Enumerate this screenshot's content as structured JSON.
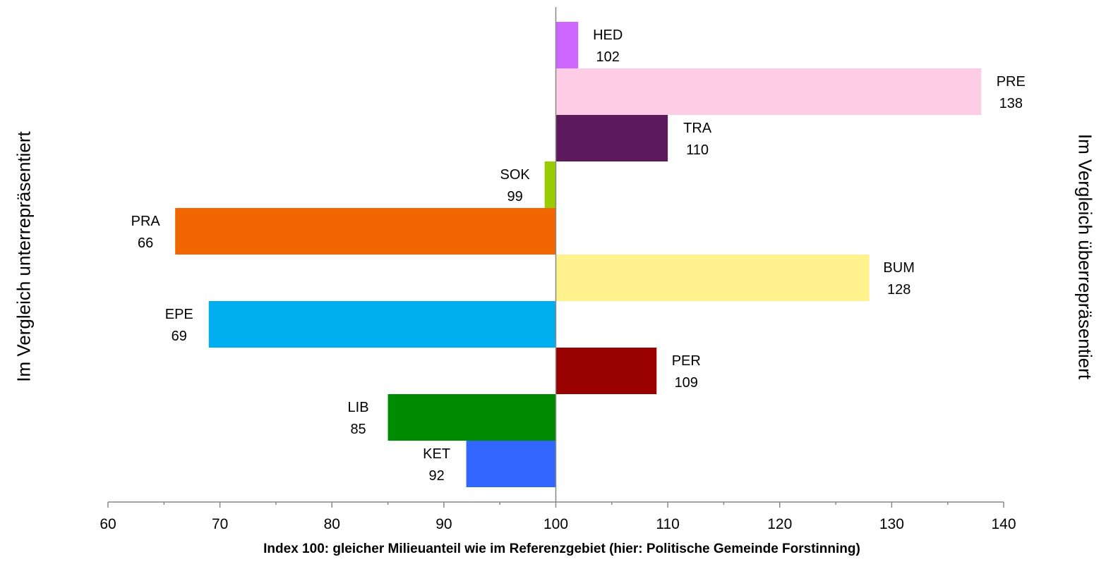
{
  "chart_data": {
    "type": "bar",
    "orientation": "horizontal",
    "baseline": 100,
    "xlim": [
      60,
      140
    ],
    "x_ticks": [
      60,
      70,
      80,
      90,
      100,
      110,
      120,
      130,
      140
    ],
    "xlabel": "Index 100: gleicher Milieuanteil wie im Referenzgebiet (hier: Politische Gemeinde Forstinning)",
    "left_label": "Im Vergleich unterrepräsentiert",
    "right_label": "Im Vergleich überrepräsentiert",
    "grid": false,
    "bars": [
      {
        "category": "HED",
        "value": 102,
        "color": "#CC66FF"
      },
      {
        "category": "PRE",
        "value": 138,
        "color": "#FFCCE6"
      },
      {
        "category": "TRA",
        "value": 110,
        "color": "#5C1A5C"
      },
      {
        "category": "SOK",
        "value": 99,
        "color": "#99CC00"
      },
      {
        "category": "PRA",
        "value": 66,
        "color": "#F26600"
      },
      {
        "category": "BUM",
        "value": 128,
        "color": "#FFF28C"
      },
      {
        "category": "EPE",
        "value": 69,
        "color": "#00ADEF"
      },
      {
        "category": "PER",
        "value": 109,
        "color": "#990000"
      },
      {
        "category": "LIB",
        "value": 85,
        "color": "#008A00"
      },
      {
        "category": "KET",
        "value": 92,
        "color": "#3366FF"
      }
    ]
  }
}
